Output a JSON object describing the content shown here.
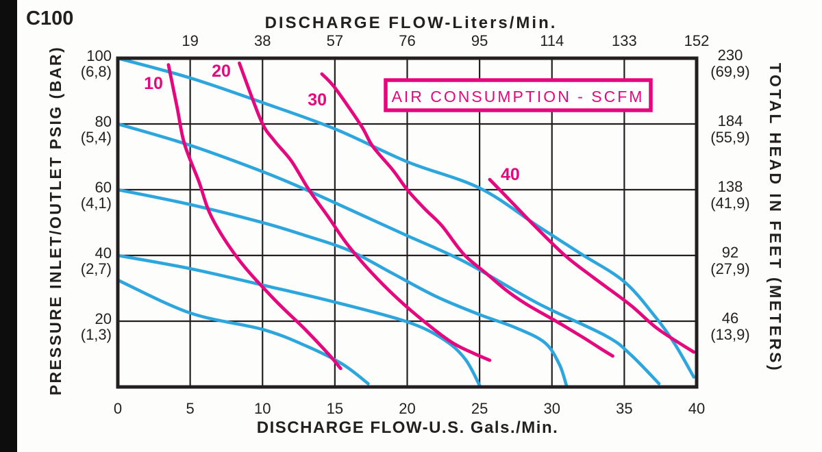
{
  "model": "C100",
  "top_axis": {
    "title": "DISCHARGE FLOW-Liters/Min.",
    "ticks": [
      19,
      38,
      57,
      76,
      95,
      114,
      133,
      152
    ]
  },
  "bottom_axis": {
    "title": "DISCHARGE FLOW-U.S. Gals./Min.",
    "ticks": [
      0,
      5,
      10,
      15,
      20,
      25,
      30,
      35,
      40
    ]
  },
  "left_axis": {
    "title": "PRESSURE INLET/OUTLET PSIG (BAR)",
    "ticks": [
      {
        "psig": "100",
        "bar": "(6,8)"
      },
      {
        "psig": "80",
        "bar": "(5,4)"
      },
      {
        "psig": "60",
        "bar": "(4,1)"
      },
      {
        "psig": "40",
        "bar": "(2,7)"
      },
      {
        "psig": "20",
        "bar": "(1,3)"
      }
    ]
  },
  "right_axis": {
    "title": "TOTAL HEAD IN FEET (METERS)",
    "ticks": [
      {
        "feet": "230",
        "meters": "(69,9)",
        "psig_level": 100
      },
      {
        "feet": "184",
        "meters": "(55,9)",
        "psig_level": 80
      },
      {
        "feet": "138",
        "meters": "(41,9)",
        "psig_level": 60
      },
      {
        "feet": "92",
        "meters": "(27,9)",
        "psig_level": 40
      },
      {
        "feet": "46",
        "meters": "(13,9)",
        "psig_level": 20
      }
    ]
  },
  "legend_box": {
    "label": "AIR CONSUMPTION - SCFM"
  },
  "colors": {
    "ink": "#231f20",
    "curve_blue": "#2ca6dd",
    "curve_magenta": "#e6077e"
  },
  "chart_data": {
    "type": "line",
    "title": "C100 pump performance",
    "xlabel": "DISCHARGE FLOW-U.S. Gals./Min.",
    "ylabel": "PRESSURE INLET/OUTLET PSIG (BAR)",
    "xlim": [
      0,
      40
    ],
    "ylim": [
      0,
      100
    ],
    "x_unit": "U.S. GPM",
    "y_unit": "PSIG",
    "grid": true,
    "performance_curves": [
      {
        "id": "curve-1",
        "points": [
          [
            0,
            100
          ],
          [
            5,
            94
          ],
          [
            10,
            86.5
          ],
          [
            15,
            78.5
          ],
          [
            20,
            68.5
          ],
          [
            25,
            60.5
          ],
          [
            29,
            49
          ],
          [
            32,
            40.5
          ],
          [
            35,
            32
          ],
          [
            37.2,
            21
          ],
          [
            38.5,
            13
          ],
          [
            39.8,
            3
          ]
        ]
      },
      {
        "id": "curve-2",
        "points": [
          [
            0,
            80
          ],
          [
            5,
            73.5
          ],
          [
            10,
            65.5
          ],
          [
            13,
            60
          ],
          [
            17.5,
            51
          ],
          [
            20,
            46
          ],
          [
            24,
            38
          ],
          [
            29,
            25.5
          ],
          [
            33.7,
            15.6
          ],
          [
            35.4,
            10
          ],
          [
            37.4,
            1
          ]
        ]
      },
      {
        "id": "curve-3",
        "points": [
          [
            0,
            60
          ],
          [
            5,
            55.5
          ],
          [
            10,
            50
          ],
          [
            13,
            46
          ],
          [
            16,
            41.5
          ],
          [
            19,
            34.5
          ],
          [
            22,
            27.5
          ],
          [
            25,
            22
          ],
          [
            27.5,
            18
          ],
          [
            29.5,
            13.5
          ],
          [
            30.5,
            7
          ],
          [
            31,
            0.5
          ]
        ]
      },
      {
        "id": "curve-4",
        "points": [
          [
            0,
            40
          ],
          [
            5,
            36
          ],
          [
            10,
            31
          ],
          [
            15,
            25.8
          ],
          [
            20,
            19.8
          ],
          [
            22.5,
            14.5
          ],
          [
            24,
            8.5
          ],
          [
            25,
            0.5
          ]
        ]
      },
      {
        "id": "curve-5",
        "points": [
          [
            0,
            32.5
          ],
          [
            5,
            22.5
          ],
          [
            10,
            17.5
          ],
          [
            13,
            12.5
          ],
          [
            15.5,
            7
          ],
          [
            17.3,
            1
          ]
        ]
      }
    ],
    "air_consumption_curves": [
      {
        "label": "10",
        "label_pos": [
          2.46,
          92.5
        ],
        "points": [
          [
            3.5,
            98
          ],
          [
            4.1,
            85
          ],
          [
            4.6,
            74
          ],
          [
            5.6,
            62.5
          ],
          [
            6.5,
            51.5
          ],
          [
            8.4,
            38.5
          ],
          [
            10.8,
            26.7
          ],
          [
            12.9,
            17.7
          ],
          [
            14.6,
            9.8
          ],
          [
            15.4,
            5.6
          ]
        ]
      },
      {
        "label": "20",
        "label_pos": [
          7.15,
          96.2
        ],
        "points": [
          [
            8.4,
            98.5
          ],
          [
            9.9,
            81
          ],
          [
            10.8,
            75
          ],
          [
            12,
            68.7
          ],
          [
            13.2,
            60
          ],
          [
            14.5,
            52
          ],
          [
            15.8,
            43.7
          ],
          [
            17.4,
            35.4
          ],
          [
            19.3,
            27
          ],
          [
            21.2,
            19.8
          ],
          [
            23.1,
            13.5
          ],
          [
            24.5,
            10.4
          ],
          [
            25.7,
            8.1
          ]
        ]
      },
      {
        "label": "30",
        "label_pos": [
          13.78,
          87.5
        ],
        "points": [
          [
            14.1,
            95.2
          ],
          [
            15,
            91
          ],
          [
            16.8,
            79.6
          ],
          [
            17.6,
            73.3
          ],
          [
            19,
            66
          ],
          [
            20,
            60
          ],
          [
            21.2,
            54.2
          ],
          [
            22.4,
            49
          ],
          [
            23.9,
            40.4
          ],
          [
            25.5,
            34.4
          ],
          [
            26.9,
            29.2
          ],
          [
            28.3,
            25
          ],
          [
            30.2,
            20.2
          ],
          [
            32.1,
            15.2
          ],
          [
            33.6,
            11
          ],
          [
            34.2,
            9.4
          ]
        ]
      },
      {
        "label": "40",
        "label_pos": [
          27.12,
          64.8
        ],
        "points": [
          [
            25.7,
            63.1
          ],
          [
            27.2,
            56.3
          ],
          [
            28.8,
            49
          ],
          [
            30.9,
            40
          ],
          [
            32.8,
            33.5
          ],
          [
            35.4,
            25
          ],
          [
            37.3,
            17.7
          ],
          [
            39.8,
            10.6
          ]
        ]
      }
    ]
  }
}
